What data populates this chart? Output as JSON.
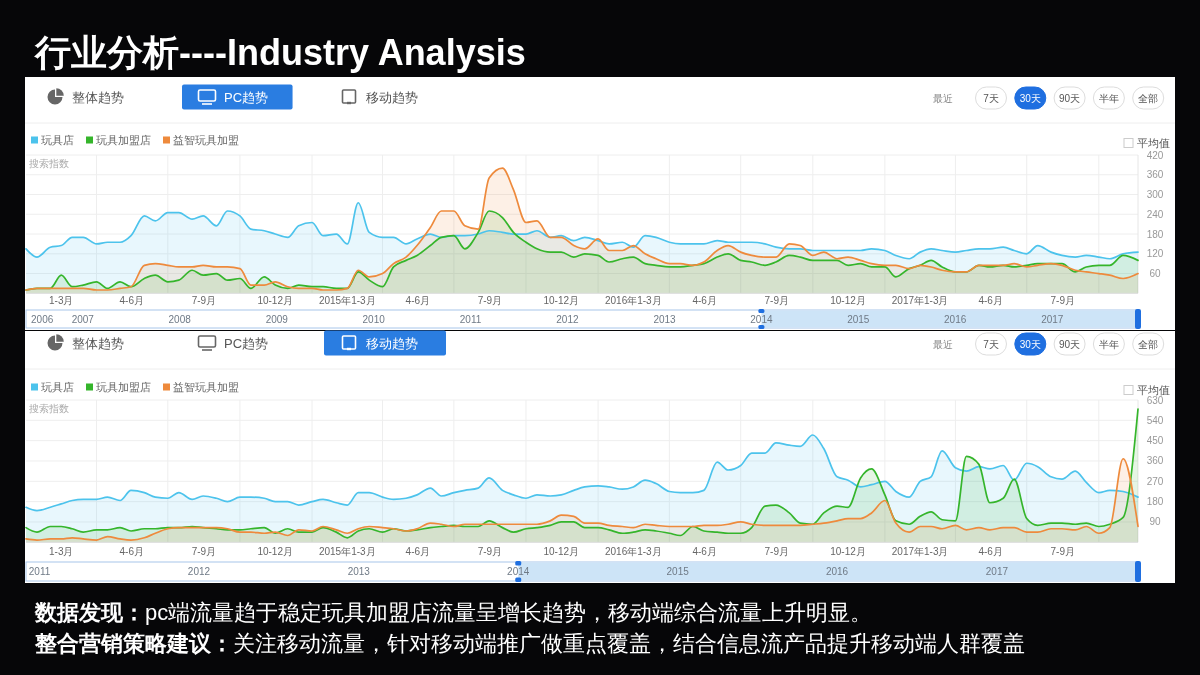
{
  "chart_data": [
    {
      "type": "area",
      "title": "行业分析----Industry Analysis",
      "ylabel": "搜索指数",
      "legend": "top left",
      "grid": true,
      "annotations": [
        "整体趋势",
        "PC趋势",
        "移动趋势",
        "最近",
        "7天",
        "30天",
        "90天",
        "半年",
        "全部",
        "平均值"
      ],
      "x": [
        "2014-01-01",
        "2014-01-15",
        "2014-02-01",
        "2014-02-15",
        "2014-03-01",
        "2014-03-15",
        "2014-04-01",
        "2014-04-15",
        "2014-05-01",
        "2014-05-15",
        "2014-06-01",
        "2014-06-15",
        "2014-07-01",
        "2014-07-15",
        "2014-08-01",
        "2014-08-15",
        "2014-09-01",
        "2014-09-15",
        "2014-10-01",
        "2014-10-15",
        "2014-11-01",
        "2014-11-15",
        "2014-12-01",
        "2014-12-15",
        "2015-01-01",
        "2015-01-15",
        "2015-02-01",
        "2015-02-15",
        "2015-03-01",
        "2015-03-15",
        "2015-04-01",
        "2015-04-15",
        "2015-05-01",
        "2015-05-15",
        "2015-06-01",
        "2015-06-15",
        "2015-07-01",
        "2015-07-15",
        "2015-08-01",
        "2015-08-15",
        "2015-09-01",
        "2015-09-15",
        "2015-10-01",
        "2015-10-15",
        "2015-11-01",
        "2015-11-15",
        "2015-12-01",
        "2015-12-15",
        "2016-01-01",
        "2016-01-15",
        "2016-02-01",
        "2016-02-15",
        "2016-03-01",
        "2016-03-15",
        "2016-04-01",
        "2016-04-15",
        "2016-05-01",
        "2016-05-15",
        "2016-06-01",
        "2016-06-15",
        "2016-07-01",
        "2016-07-15",
        "2016-08-01",
        "2016-08-15",
        "2016-09-01",
        "2016-09-15",
        "2016-10-01",
        "2016-10-15",
        "2016-11-01",
        "2016-11-15",
        "2016-12-01",
        "2016-12-15",
        "2017-01-01",
        "2017-01-15",
        "2017-02-01",
        "2017-02-15",
        "2017-03-01",
        "2017-03-15",
        "2017-04-01",
        "2017-04-15",
        "2017-05-01",
        "2017-05-15",
        "2017-06-01",
        "2017-06-15",
        "2017-07-01",
        "2017-07-15",
        "2017-08-01",
        "2017-08-15",
        "2017-09-01",
        "2017-09-15",
        "2017-10-01",
        "2017-10-15",
        "2017-11-01",
        "2017-11-20"
      ],
      "xlim": [
        "2014-01-01",
        "2017-11-20"
      ],
      "xticks": [
        {
          "value": "2014-02-15",
          "label": "1-3月"
        },
        {
          "value": "2014-04-01",
          "label": null
        },
        {
          "value": "2014-05-16",
          "label": "4-6月"
        },
        {
          "value": "2014-07-01",
          "label": null
        },
        {
          "value": "2014-08-16",
          "label": "7-9月"
        },
        {
          "value": "2014-10-01",
          "label": null
        },
        {
          "value": "2014-11-15",
          "label": "10-12月"
        },
        {
          "value": "2015-01-01",
          "label": null
        },
        {
          "value": "2015-02-15",
          "label": "2015年1-3月"
        },
        {
          "value": "2015-04-01",
          "label": null
        },
        {
          "value": "2015-05-16",
          "label": "4-6月"
        },
        {
          "value": "2015-07-01",
          "label": null
        },
        {
          "value": "2015-08-16",
          "label": "7-9月"
        },
        {
          "value": "2015-10-01",
          "label": null
        },
        {
          "value": "2015-11-15",
          "label": "10-12月"
        },
        {
          "value": "2016-01-01",
          "label": null
        },
        {
          "value": "2016-02-15",
          "label": "2016年1-3月"
        },
        {
          "value": "2016-04-01",
          "label": null
        },
        {
          "value": "2016-05-16",
          "label": "4-6月"
        },
        {
          "value": "2016-07-01",
          "label": null
        },
        {
          "value": "2016-08-16",
          "label": "7-9月"
        },
        {
          "value": "2016-10-01",
          "label": null
        },
        {
          "value": "2016-11-15",
          "label": "10-12月"
        },
        {
          "value": "2017-01-01",
          "label": null
        },
        {
          "value": "2017-02-15",
          "label": "2017年1-3月"
        },
        {
          "value": "2017-04-01",
          "label": null
        },
        {
          "value": "2017-05-16",
          "label": "4-6月"
        },
        {
          "value": "2017-07-01",
          "label": null
        },
        {
          "value": "2017-08-16",
          "label": "7-9月"
        },
        {
          "value": "2017-10-01",
          "label": null
        }
      ],
      "ylim": [
        0,
        420
      ],
      "yticks": [
        60,
        120,
        180,
        240,
        300,
        360,
        420
      ],
      "x2lim": [
        "2006-06-01",
        "2017-11-20"
      ],
      "x2ticks": [
        {
          "value": "2006-08-01",
          "label": "2006"
        },
        {
          "value": "2007-01-01",
          "label": "2007"
        },
        {
          "value": "2008-01-01",
          "label": "2008"
        },
        {
          "value": "2009-01-01",
          "label": "2009"
        },
        {
          "value": "2010-01-01",
          "label": "2010"
        },
        {
          "value": "2011-01-01",
          "label": "2011"
        },
        {
          "value": "2012-01-01",
          "label": "2012"
        },
        {
          "value": "2013-01-01",
          "label": "2013"
        },
        {
          "value": "2014-01-01",
          "label": "2014"
        },
        {
          "value": "2015-01-01",
          "label": "2015"
        },
        {
          "value": "2016-01-01",
          "label": "2016"
        },
        {
          "value": "2017-01-01",
          "label": "2017"
        }
      ],
      "series": [
        {
          "name": "玩具店",
          "color": "#4cc3ec",
          "values": [
            135,
            110,
            140,
            145,
            170,
            170,
            150,
            155,
            155,
            175,
            235,
            220,
            245,
            245,
            225,
            235,
            205,
            250,
            235,
            195,
            190,
            180,
            170,
            205,
            215,
            175,
            180,
            150,
            275,
            185,
            170,
            170,
            150,
            165,
            180,
            170,
            175,
            175,
            180,
            190,
            185,
            180,
            180,
            190,
            170,
            175,
            160,
            170,
            160,
            150,
            155,
            140,
            175,
            170,
            155,
            150,
            150,
            150,
            160,
            155,
            155,
            155,
            150,
            140,
            135,
            135,
            130,
            130,
            130,
            130,
            130,
            135,
            130,
            115,
            105,
            125,
            135,
            130,
            125,
            130,
            135,
            135,
            140,
            130,
            120,
            145,
            125,
            115,
            110,
            115,
            110,
            105,
            120,
            125
          ]
        },
        {
          "name": "玩具加盟店",
          "color": "#35b52b",
          "values": [
            10,
            15,
            15,
            55,
            20,
            25,
            35,
            15,
            35,
            20,
            45,
            55,
            35,
            40,
            70,
            55,
            60,
            40,
            45,
            15,
            50,
            25,
            15,
            25,
            20,
            20,
            15,
            15,
            65,
            40,
            20,
            80,
            100,
            115,
            145,
            170,
            175,
            135,
            185,
            250,
            230,
            185,
            155,
            135,
            125,
            125,
            110,
            120,
            115,
            95,
            105,
            110,
            90,
            85,
            80,
            80,
            85,
            90,
            110,
            120,
            100,
            95,
            85,
            95,
            115,
            110,
            100,
            100,
            100,
            85,
            90,
            80,
            80,
            50,
            75,
            85,
            100,
            80,
            65,
            65,
            85,
            80,
            85,
            80,
            85,
            90,
            90,
            90,
            65,
            80,
            85,
            85,
            115,
            100
          ]
        },
        {
          "name": "益智玩具加盟",
          "color": "#ee8a3c",
          "values": [
            10,
            15,
            15,
            15,
            15,
            15,
            10,
            10,
            15,
            20,
            85,
            90,
            85,
            80,
            80,
            85,
            80,
            80,
            75,
            25,
            25,
            35,
            20,
            15,
            15,
            10,
            10,
            15,
            70,
            50,
            60,
            90,
            110,
            145,
            200,
            250,
            250,
            205,
            195,
            350,
            380,
            315,
            215,
            220,
            170,
            170,
            145,
            135,
            165,
            130,
            130,
            145,
            120,
            105,
            90,
            90,
            85,
            95,
            130,
            145,
            125,
            115,
            110,
            110,
            150,
            145,
            115,
            125,
            105,
            110,
            100,
            90,
            85,
            85,
            75,
            85,
            80,
            70,
            65,
            65,
            85,
            85,
            85,
            90,
            80,
            85,
            90,
            85,
            70,
            65,
            60,
            55,
            45,
            60
          ]
        }
      ]
    },
    {
      "type": "area",
      "ylabel": "搜索指数",
      "legend": "top left",
      "grid": true,
      "annotations": [
        "整体趋势",
        "PC趋势",
        "移动趋势",
        "最近",
        "7天",
        "30天",
        "90天",
        "半年",
        "全部",
        "平均值"
      ],
      "x": [
        "2014-01-01",
        "2014-01-15",
        "2014-02-01",
        "2014-02-15",
        "2014-03-01",
        "2014-03-15",
        "2014-04-01",
        "2014-04-15",
        "2014-05-01",
        "2014-05-15",
        "2014-06-01",
        "2014-06-15",
        "2014-07-01",
        "2014-07-15",
        "2014-08-01",
        "2014-08-15",
        "2014-09-01",
        "2014-09-15",
        "2014-10-01",
        "2014-10-15",
        "2014-11-01",
        "2014-11-15",
        "2014-12-01",
        "2014-12-15",
        "2015-01-01",
        "2015-01-15",
        "2015-02-01",
        "2015-02-15",
        "2015-03-01",
        "2015-03-15",
        "2015-04-01",
        "2015-04-15",
        "2015-05-01",
        "2015-05-15",
        "2015-06-01",
        "2015-06-15",
        "2015-07-01",
        "2015-07-15",
        "2015-08-01",
        "2015-08-15",
        "2015-09-01",
        "2015-09-15",
        "2015-10-01",
        "2015-10-15",
        "2015-11-01",
        "2015-11-15",
        "2015-12-01",
        "2015-12-15",
        "2016-01-01",
        "2016-01-15",
        "2016-02-01",
        "2016-02-15",
        "2016-03-01",
        "2016-03-15",
        "2016-04-01",
        "2016-04-15",
        "2016-05-01",
        "2016-05-15",
        "2016-06-01",
        "2016-06-15",
        "2016-07-01",
        "2016-07-15",
        "2016-08-01",
        "2016-08-15",
        "2016-09-01",
        "2016-09-15",
        "2016-10-01",
        "2016-10-15",
        "2016-11-01",
        "2016-11-15",
        "2016-12-01",
        "2016-12-15",
        "2017-01-01",
        "2017-01-15",
        "2017-02-01",
        "2017-02-15",
        "2017-03-01",
        "2017-03-15",
        "2017-04-01",
        "2017-04-15",
        "2017-05-01",
        "2017-05-15",
        "2017-06-01",
        "2017-06-15",
        "2017-07-01",
        "2017-07-15",
        "2017-08-01",
        "2017-08-15",
        "2017-09-01",
        "2017-09-15",
        "2017-10-01",
        "2017-10-15",
        "2017-11-01",
        "2017-11-20"
      ],
      "xlim": [
        "2014-01-01",
        "2017-11-20"
      ],
      "xticks": [
        {
          "value": "2014-02-15",
          "label": "1-3月"
        },
        {
          "value": "2014-04-01",
          "label": null
        },
        {
          "value": "2014-05-16",
          "label": "4-6月"
        },
        {
          "value": "2014-07-01",
          "label": null
        },
        {
          "value": "2014-08-16",
          "label": "7-9月"
        },
        {
          "value": "2014-10-01",
          "label": null
        },
        {
          "value": "2014-11-15",
          "label": "10-12月"
        },
        {
          "value": "2015-01-01",
          "label": null
        },
        {
          "value": "2015-02-15",
          "label": "2015年1-3月"
        },
        {
          "value": "2015-04-01",
          "label": null
        },
        {
          "value": "2015-05-16",
          "label": "4-6月"
        },
        {
          "value": "2015-07-01",
          "label": null
        },
        {
          "value": "2015-08-16",
          "label": "7-9月"
        },
        {
          "value": "2015-10-01",
          "label": null
        },
        {
          "value": "2015-11-15",
          "label": "10-12月"
        },
        {
          "value": "2016-01-01",
          "label": null
        },
        {
          "value": "2016-02-15",
          "label": "2016年1-3月"
        },
        {
          "value": "2016-04-01",
          "label": null
        },
        {
          "value": "2016-05-16",
          "label": "4-6月"
        },
        {
          "value": "2016-07-01",
          "label": null
        },
        {
          "value": "2016-08-16",
          "label": "7-9月"
        },
        {
          "value": "2016-10-01",
          "label": null
        },
        {
          "value": "2016-11-15",
          "label": "10-12月"
        },
        {
          "value": "2017-01-01",
          "label": null
        },
        {
          "value": "2017-02-15",
          "label": "2017年1-3月"
        },
        {
          "value": "2017-04-01",
          "label": null
        },
        {
          "value": "2017-05-16",
          "label": "4-6月"
        },
        {
          "value": "2017-07-01",
          "label": null
        },
        {
          "value": "2017-08-16",
          "label": "7-9月"
        },
        {
          "value": "2017-10-01",
          "label": null
        }
      ],
      "ylim": [
        0,
        630
      ],
      "yticks": [
        90,
        180,
        270,
        360,
        450,
        540,
        630
      ],
      "x2lim": [
        "2010-12-01",
        "2017-11-20"
      ],
      "x2ticks": [
        {
          "value": "2011-01-01",
          "label": "2011"
        },
        {
          "value": "2012-01-01",
          "label": "2012"
        },
        {
          "value": "2013-01-01",
          "label": "2013"
        },
        {
          "value": "2014-01-01",
          "label": "2014"
        },
        {
          "value": "2015-01-01",
          "label": "2015"
        },
        {
          "value": "2016-01-01",
          "label": "2016"
        },
        {
          "value": "2017-01-01",
          "label": "2017"
        }
      ],
      "series": [
        {
          "name": "玩具店",
          "color": "#4cc3ec",
          "values": [
            155,
            140,
            155,
            170,
            185,
            190,
            190,
            200,
            185,
            230,
            220,
            200,
            195,
            220,
            190,
            205,
            195,
            180,
            200,
            200,
            195,
            180,
            180,
            165,
            180,
            190,
            175,
            165,
            220,
            220,
            200,
            190,
            195,
            210,
            240,
            205,
            220,
            230,
            240,
            285,
            230,
            210,
            195,
            210,
            205,
            210,
            230,
            245,
            250,
            245,
            235,
            245,
            275,
            260,
            225,
            220,
            220,
            230,
            355,
            320,
            340,
            395,
            395,
            440,
            430,
            425,
            475,
            415,
            290,
            275,
            245,
            255,
            270,
            225,
            200,
            270,
            290,
            405,
            330,
            315,
            335,
            325,
            340,
            275,
            350,
            335,
            290,
            280,
            315,
            265,
            220,
            230,
            225,
            200
          ]
        },
        {
          "name": "玩具加盟店",
          "color": "#35b52b",
          "values": [
            65,
            45,
            70,
            70,
            60,
            45,
            55,
            55,
            65,
            50,
            60,
            60,
            65,
            65,
            70,
            65,
            60,
            55,
            55,
            60,
            65,
            40,
            60,
            45,
            45,
            65,
            45,
            20,
            50,
            60,
            45,
            60,
            50,
            55,
            65,
            70,
            75,
            70,
            70,
            95,
            65,
            45,
            60,
            65,
            75,
            90,
            90,
            65,
            65,
            55,
            40,
            45,
            55,
            50,
            40,
            30,
            70,
            50,
            45,
            40,
            40,
            65,
            160,
            165,
            130,
            85,
            80,
            130,
            160,
            155,
            285,
            325,
            210,
            95,
            80,
            115,
            135,
            100,
            95,
            380,
            345,
            175,
            195,
            280,
            105,
            75,
            85,
            85,
            80,
            85,
            70,
            80,
            110,
            590
          ]
        },
        {
          "name": "益智玩具加盟",
          "color": "#ee8a3c",
          "values": [
            15,
            10,
            15,
            15,
            20,
            15,
            10,
            25,
            15,
            10,
            20,
            40,
            60,
            65,
            65,
            65,
            65,
            60,
            45,
            45,
            40,
            45,
            30,
            55,
            50,
            70,
            55,
            40,
            60,
            70,
            65,
            60,
            50,
            60,
            85,
            80,
            70,
            80,
            80,
            80,
            80,
            80,
            80,
            80,
            95,
            120,
            115,
            85,
            85,
            75,
            70,
            65,
            80,
            75,
            70,
            70,
            70,
            75,
            75,
            80,
            90,
            80,
            75,
            75,
            75,
            75,
            80,
            85,
            95,
            105,
            105,
            130,
            185,
            85,
            45,
            70,
            70,
            60,
            75,
            55,
            65,
            55,
            65,
            65,
            45,
            45,
            60,
            60,
            55,
            70,
            40,
            65,
            370,
            70
          ]
        }
      ]
    },
    {
      "type": "other",
      "annotations": [
        "数据发现：pc端流量趋于稳定玩具加盟店流量呈增长趋势，移动端综合流量上升明显。",
        "整合营销策略建议：关注移动流量，针对移动端推广做重点覆盖，结合信息流产品提升移动端人群覆盖"
      ]
    }
  ]
}
